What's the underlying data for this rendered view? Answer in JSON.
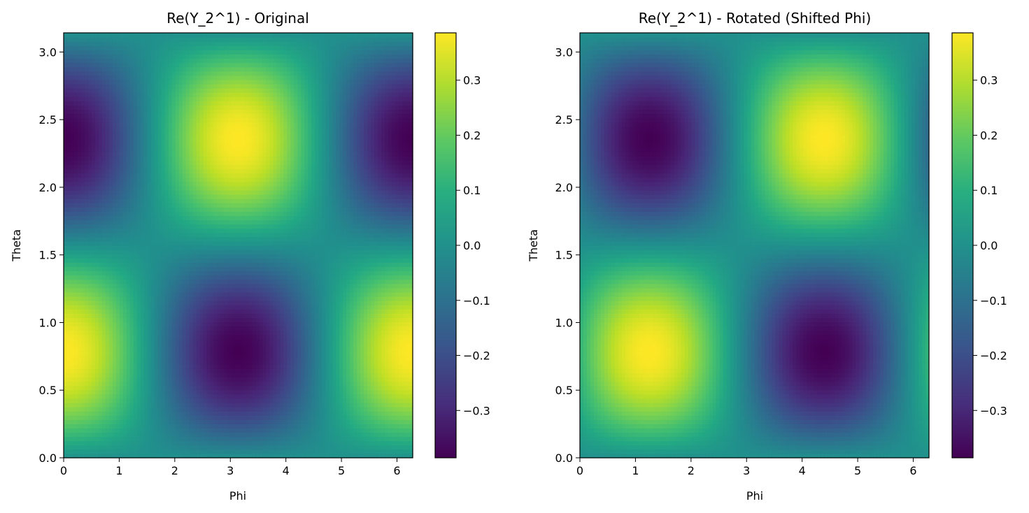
{
  "chart_data": [
    {
      "type": "heatmap",
      "title": "Re(Y_2^1) - Original",
      "xlabel": "Phi",
      "ylabel": "Theta",
      "xlim": [
        0,
        6.283
      ],
      "ylim": [
        0,
        3.1416
      ],
      "xticks": [
        "0",
        "1",
        "2",
        "3",
        "4",
        "5",
        "6"
      ],
      "yticks": [
        "0.0",
        "0.5",
        "1.0",
        "1.5",
        "2.0",
        "2.5",
        "3.0"
      ],
      "phi_shift": 0,
      "vmin": -0.386,
      "vmax": 0.386,
      "colorbar_ticks": [
        "−0.3",
        "−0.2",
        "−0.1",
        "0.0",
        "0.1",
        "0.2",
        "0.3"
      ],
      "colormap": "viridis",
      "grid": false
    },
    {
      "type": "heatmap",
      "title": "Re(Y_2^1) - Rotated (Shifted Phi)",
      "xlabel": "Phi",
      "ylabel": "Theta",
      "xlim": [
        0,
        6.283
      ],
      "ylim": [
        0,
        3.1416
      ],
      "xticks": [
        "0",
        "1",
        "2",
        "3",
        "4",
        "5",
        "6"
      ],
      "yticks": [
        "0.0",
        "0.5",
        "1.0",
        "1.5",
        "2.0",
        "2.5",
        "3.0"
      ],
      "phi_shift": 1.25,
      "vmin": -0.386,
      "vmax": 0.386,
      "colorbar_ticks": [
        "−0.3",
        "−0.2",
        "−0.1",
        "0.0",
        "0.1",
        "0.2",
        "0.3"
      ],
      "colormap": "viridis",
      "grid": false
    }
  ]
}
